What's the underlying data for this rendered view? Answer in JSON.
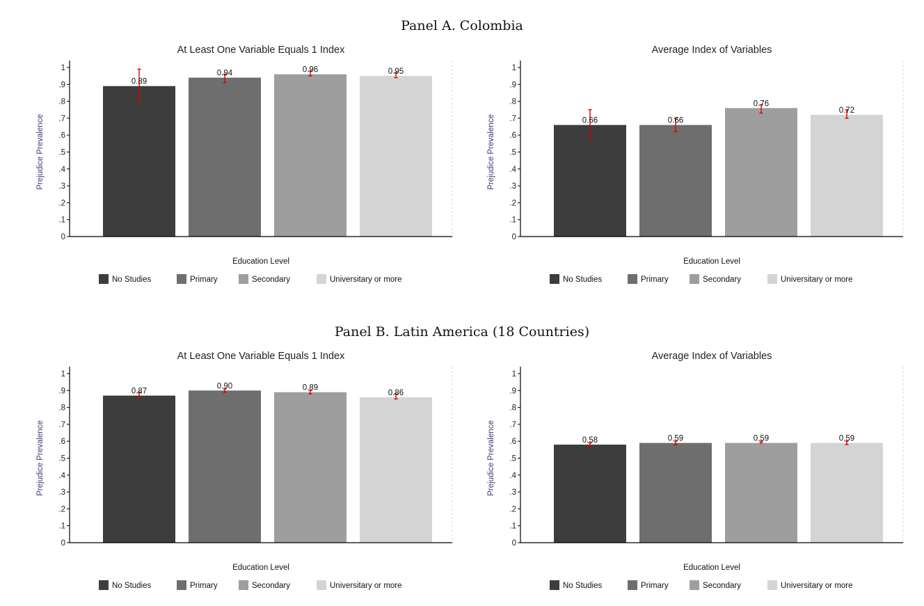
{
  "panels": [
    {
      "title": "Panel A. Colombia"
    },
    {
      "title": "Panel B. Latin America (18 Countries)"
    }
  ],
  "colors": [
    "#3d3d3d",
    "#6e6e6e",
    "#9e9e9e",
    "#d4d4d4"
  ],
  "error_color": "#dd0000",
  "chart_data": [
    {
      "panel": "Panel A. Colombia",
      "type": "bar",
      "title": "At Least One Variable Equals 1 Index",
      "xlabel": "Education Level",
      "ylabel": "Prejudice Prevalence",
      "ylim": [
        0,
        1
      ],
      "yticks": [
        "0",
        ".1",
        ".2",
        ".3",
        ".4",
        ".5",
        ".6",
        ".7",
        ".8",
        ".9",
        "1"
      ],
      "legend_position": "bottom",
      "categories": [
        "No Studies",
        "Primary",
        "Secondary",
        "Universitary or more"
      ],
      "values": [
        0.89,
        0.94,
        0.96,
        0.95
      ],
      "labels": [
        "0.89",
        "0.94",
        "0.96",
        "0.95"
      ],
      "ci_low": [
        0.8,
        0.91,
        0.95,
        0.94
      ],
      "ci_high": [
        0.99,
        0.96,
        0.98,
        0.97
      ]
    },
    {
      "panel": "Panel A. Colombia",
      "type": "bar",
      "title": "Average Index of Variables",
      "xlabel": "Education Level",
      "ylabel": "Prejudice Prevalence",
      "ylim": [
        0,
        1
      ],
      "yticks": [
        "0",
        ".1",
        ".2",
        ".3",
        ".4",
        ".5",
        ".6",
        ".7",
        ".8",
        ".9",
        "1"
      ],
      "legend_position": "bottom",
      "categories": [
        "No Studies",
        "Primary",
        "Secondary",
        "Universitary or more"
      ],
      "values": [
        0.66,
        0.66,
        0.76,
        0.72
      ],
      "labels": [
        "0.66",
        "0.66",
        "0.76",
        "0.72"
      ],
      "ci_low": [
        0.58,
        0.62,
        0.73,
        0.7
      ],
      "ci_high": [
        0.75,
        0.7,
        0.78,
        0.75
      ]
    },
    {
      "panel": "Panel B. Latin America (18 Countries)",
      "type": "bar",
      "title": "At Least One Variable Equals 1 Index",
      "xlabel": "Education Level",
      "ylabel": "Prejudice Prevalence",
      "ylim": [
        0,
        1
      ],
      "yticks": [
        "0",
        ".1",
        ".2",
        ".3",
        ".4",
        ".5",
        ".6",
        ".7",
        ".8",
        ".9",
        "1"
      ],
      "legend_position": "bottom",
      "categories": [
        "No Studies",
        "Primary",
        "Secondary",
        "Universitary or more"
      ],
      "values": [
        0.87,
        0.9,
        0.89,
        0.86
      ],
      "labels": [
        "0.87",
        "0.90",
        "0.89",
        "0.86"
      ],
      "ci_low": [
        0.86,
        0.89,
        0.88,
        0.85
      ],
      "ci_high": [
        0.89,
        0.91,
        0.9,
        0.88
      ]
    },
    {
      "panel": "Panel B. Latin America (18 Countries)",
      "type": "bar",
      "title": "Average Index of Variables",
      "xlabel": "Education Level",
      "ylabel": "Prejudice Prevalence",
      "ylim": [
        0,
        1
      ],
      "yticks": [
        "0",
        ".1",
        ".2",
        ".3",
        ".4",
        ".5",
        ".6",
        ".7",
        ".8",
        ".9",
        "1"
      ],
      "legend_position": "bottom",
      "categories": [
        "No Studies",
        "Primary",
        "Secondary",
        "Universitary or more"
      ],
      "values": [
        0.58,
        0.59,
        0.59,
        0.59
      ],
      "labels": [
        "0.58",
        "0.59",
        "0.59",
        "0.59"
      ],
      "ci_low": [
        0.57,
        0.58,
        0.59,
        0.58
      ],
      "ci_high": [
        0.59,
        0.6,
        0.6,
        0.6
      ]
    }
  ]
}
